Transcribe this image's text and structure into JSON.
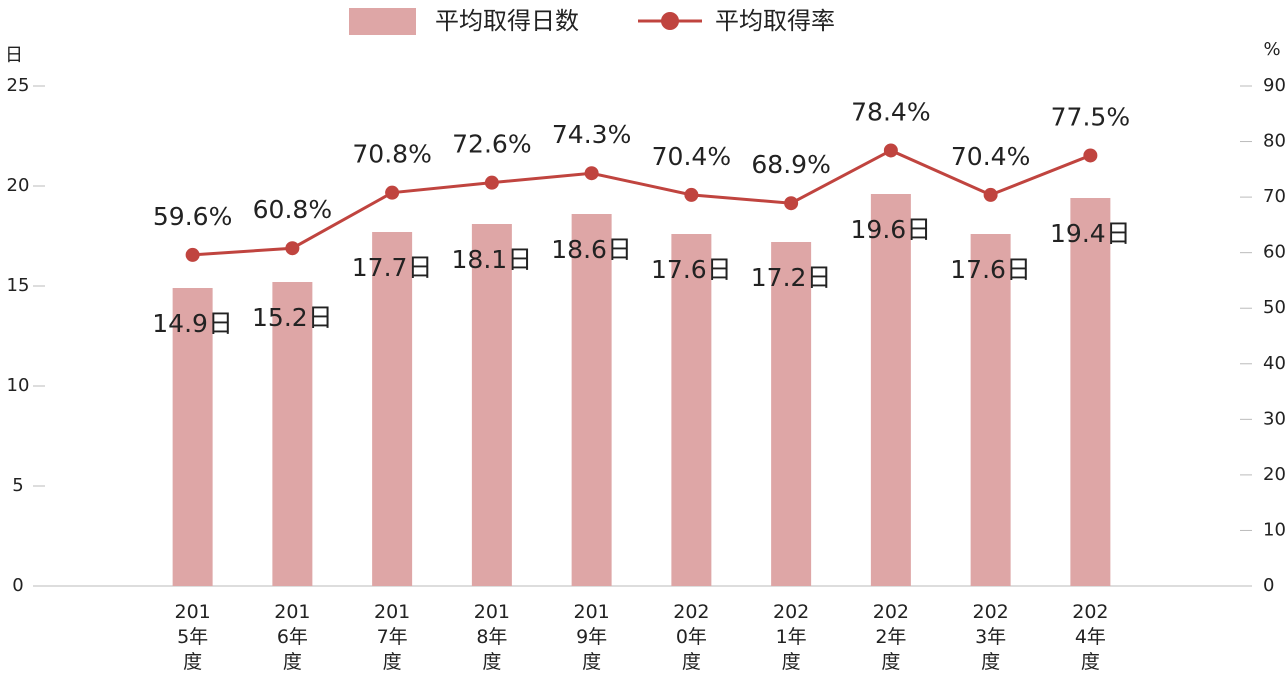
{
  "chart_data": {
    "type": "bar",
    "categories": [
      "2015年度",
      "2016年度",
      "2017年度",
      "2018年度",
      "2019年度",
      "2020年度",
      "2021年度",
      "2022年度",
      "2023年度",
      "2024年度"
    ],
    "series": [
      {
        "name": "平均取得日数",
        "type": "bar",
        "color": "#dea6a6",
        "values": [
          14.9,
          15.2,
          17.7,
          18.1,
          18.6,
          17.6,
          17.2,
          19.6,
          17.6,
          19.4
        ],
        "value_labels": [
          "14.9日",
          "15.2日",
          "17.7日",
          "18.1日",
          "18.6日",
          "17.6日",
          "17.2日",
          "19.6日",
          "17.6日",
          "19.4日"
        ]
      },
      {
        "name": "平均取得率",
        "type": "line",
        "axis": "y2",
        "color": "#c0443f",
        "values": [
          59.6,
          60.8,
          70.8,
          72.6,
          74.3,
          70.4,
          68.9,
          78.4,
          70.4,
          77.5
        ],
        "value_labels": [
          "59.6%",
          "60.8%",
          "70.8%",
          "72.6%",
          "74.3%",
          "70.4%",
          "68.9%",
          "78.4%",
          "70.4%",
          "77.5%"
        ]
      }
    ],
    "y_label": "日",
    "y2_label": "%",
    "ylim": [
      0,
      25
    ],
    "yticks": [
      0,
      5,
      10,
      15,
      20,
      25
    ],
    "y2lim": [
      0,
      90
    ],
    "y2ticks": [
      0,
      10,
      20,
      30,
      40,
      50,
      60,
      70,
      80,
      90
    ],
    "legend": "top"
  }
}
